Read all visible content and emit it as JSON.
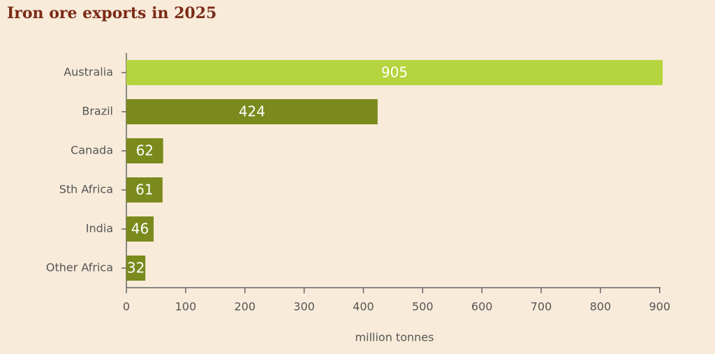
{
  "chart_data": {
    "type": "hbar",
    "title": "Iron ore exports in 2025",
    "categories": [
      "Australia",
      "Brazil",
      "Canada",
      "Sth Africa",
      "India",
      "Other Africa"
    ],
    "values": [
      905,
      424,
      62,
      61,
      46,
      32
    ],
    "colors": [
      "#b6d43d",
      "#7a8a1c",
      "#7a8a1c",
      "#7a8a1c",
      "#7a8a1c",
      "#7a8a1c"
    ],
    "xlabel": "million tonnes",
    "xlim": [
      0,
      905
    ],
    "xticks": [
      0,
      100,
      200,
      300,
      400,
      500,
      600,
      700,
      800,
      900
    ]
  }
}
